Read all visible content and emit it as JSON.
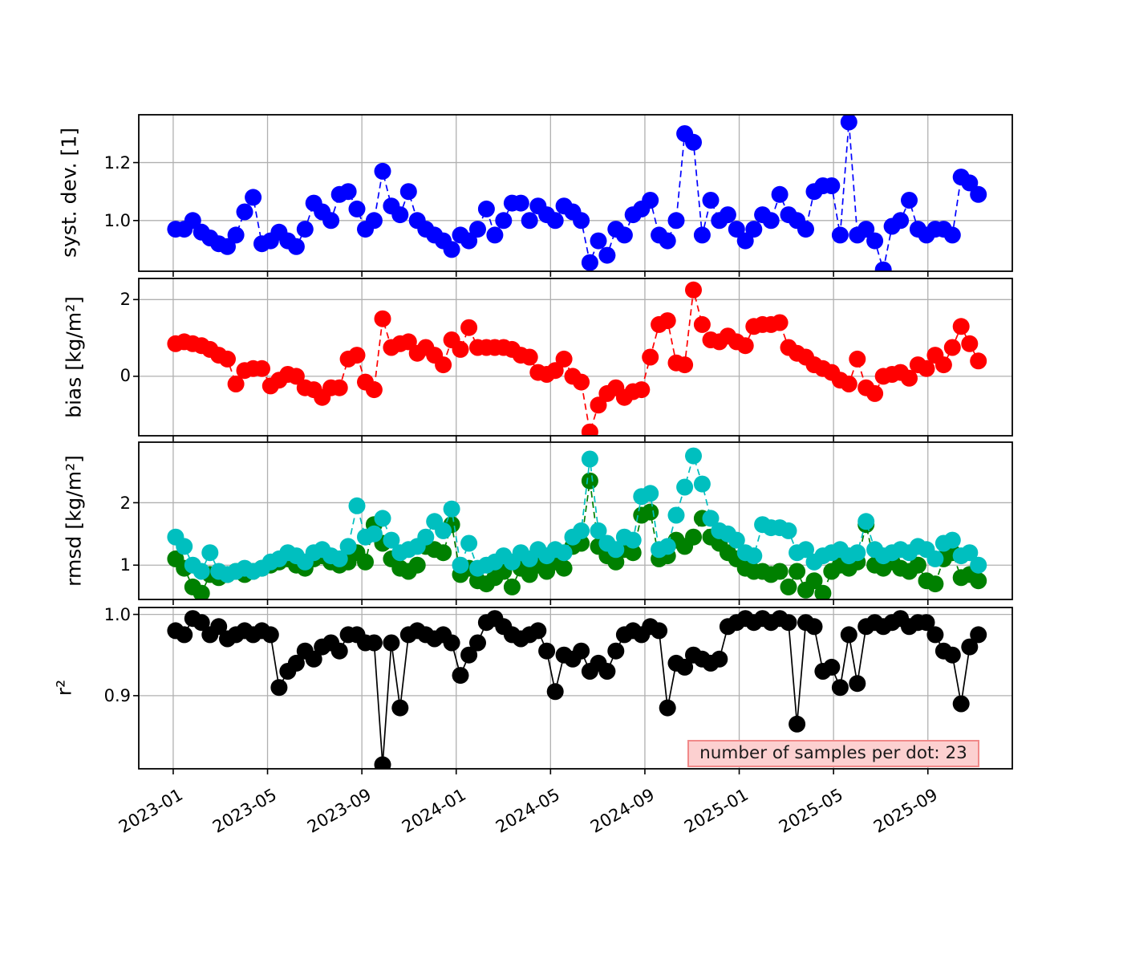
{
  "chart_data": {
    "type": "line",
    "title": "",
    "x_unit": "months since 2023-01-01",
    "x_tick_labels": [
      "2023-01",
      "2023-05",
      "2023-09",
      "2024-01",
      "2024-05",
      "2024-09",
      "2025-01",
      "2025-05",
      "2025-09"
    ],
    "x_tick_months": [
      0,
      4,
      8,
      12,
      16,
      20,
      24,
      28,
      32
    ],
    "xlim_months": [
      -1.46,
      35.58
    ],
    "grid": true,
    "legend": "none",
    "x": [
      0.1,
      0.47,
      0.83,
      1.2,
      1.56,
      1.93,
      2.3,
      2.66,
      3.03,
      3.39,
      3.76,
      4.13,
      4.49,
      4.86,
      5.22,
      5.59,
      5.96,
      6.32,
      6.69,
      7.05,
      7.42,
      7.79,
      8.15,
      8.52,
      8.88,
      9.25,
      9.62,
      9.98,
      10.35,
      10.71,
      11.08,
      11.45,
      11.81,
      12.18,
      12.54,
      12.91,
      13.28,
      13.64,
      14.01,
      14.37,
      14.74,
      15.11,
      15.47,
      15.84,
      16.2,
      16.57,
      16.94,
      17.3,
      17.67,
      18.03,
      18.4,
      18.77,
      19.13,
      19.5,
      19.86,
      20.23,
      20.6,
      20.96,
      21.33,
      21.69,
      22.06,
      22.43,
      22.79,
      23.16,
      23.52,
      23.89,
      24.26,
      24.62,
      24.99,
      25.35,
      25.72,
      26.09,
      26.45,
      26.82,
      27.18,
      27.55,
      27.92,
      28.28,
      28.65,
      29.01,
      29.38,
      29.75,
      30.11,
      30.48,
      30.84,
      31.21,
      31.58,
      31.94,
      32.31,
      32.67,
      33.04,
      33.41,
      33.77,
      34.14
    ],
    "panels": [
      {
        "ylabel": "syst. dev. [1]",
        "ylim": [
          0.825,
          1.365
        ],
        "yticks": [
          1.0,
          1.2
        ],
        "ytick_labels": [
          "1.0",
          "1.2"
        ],
        "series": [
          {
            "name": "syst-dev",
            "color": "#0000ff",
            "linestyle": "dashed",
            "values": [
              0.97,
              0.97,
              1.0,
              0.96,
              0.94,
              0.92,
              0.91,
              0.95,
              1.03,
              1.08,
              0.92,
              0.93,
              0.96,
              0.93,
              0.91,
              0.97,
              1.06,
              1.03,
              1.0,
              1.09,
              1.1,
              1.04,
              0.97,
              1.0,
              1.17,
              1.05,
              1.02,
              1.1,
              1.0,
              0.97,
              0.95,
              0.93,
              0.9,
              0.95,
              0.93,
              0.97,
              1.04,
              0.95,
              1.0,
              1.06,
              1.06,
              1.0,
              1.05,
              1.02,
              1.0,
              1.05,
              1.03,
              1.0,
              0.855,
              0.93,
              0.88,
              0.97,
              0.95,
              1.02,
              1.04,
              1.07,
              0.95,
              0.93,
              1.0,
              1.3,
              1.27,
              0.95,
              1.07,
              1.0,
              1.02,
              0.97,
              0.93,
              0.97,
              1.02,
              1.0,
              1.09,
              1.02,
              1.0,
              0.97,
              1.1,
              1.12,
              1.12,
              0.95,
              1.34,
              0.95,
              0.97,
              0.93,
              0.83,
              0.98,
              1.0,
              1.07,
              0.97,
              0.95,
              0.97,
              0.97,
              0.95,
              1.15,
              1.13,
              1.09
            ]
          }
        ]
      },
      {
        "ylabel": "bias [kg/m²]",
        "ylim": [
          -1.55,
          2.55
        ],
        "yticks": [
          0,
          2
        ],
        "ytick_labels": [
          "0",
          "2"
        ],
        "series": [
          {
            "name": "bias",
            "color": "#ff0000",
            "linestyle": "dashed",
            "values": [
              0.85,
              0.9,
              0.85,
              0.8,
              0.7,
              0.55,
              0.45,
              -0.2,
              0.15,
              0.2,
              0.2,
              -0.25,
              -0.1,
              0.05,
              0.0,
              -0.3,
              -0.35,
              -0.55,
              -0.3,
              -0.3,
              0.45,
              0.55,
              -0.15,
              -0.35,
              1.5,
              0.75,
              0.85,
              0.9,
              0.6,
              0.75,
              0.55,
              0.3,
              0.95,
              0.7,
              1.27,
              0.75,
              0.75,
              0.75,
              0.75,
              0.7,
              0.55,
              0.5,
              0.1,
              0.05,
              0.15,
              0.45,
              0.0,
              -0.15,
              -1.45,
              -0.75,
              -0.45,
              -0.3,
              -0.55,
              -0.4,
              -0.35,
              0.5,
              1.35,
              1.45,
              0.35,
              0.3,
              2.25,
              1.35,
              0.95,
              0.9,
              1.05,
              0.9,
              0.8,
              1.3,
              1.35,
              1.35,
              1.4,
              0.75,
              0.6,
              0.5,
              0.3,
              0.2,
              0.1,
              -0.1,
              -0.2,
              0.45,
              -0.3,
              -0.45,
              0.0,
              0.05,
              0.1,
              -0.05,
              0.3,
              0.2,
              0.55,
              0.3,
              0.75,
              1.3,
              0.85,
              0.4
            ]
          }
        ]
      },
      {
        "ylabel": "rmsd [kg/m²]",
        "ylim": [
          0.45,
          2.97
        ],
        "yticks": [
          1,
          2
        ],
        "ytick_labels": [
          "1",
          "2"
        ],
        "series": [
          {
            "name": "rmsd-green",
            "color": "#008000",
            "linestyle": "dashed",
            "values": [
              1.1,
              0.95,
              0.65,
              0.55,
              0.85,
              0.8,
              0.85,
              0.9,
              0.85,
              0.9,
              0.95,
              1.0,
              1.05,
              1.1,
              1.0,
              0.95,
              1.1,
              1.15,
              1.05,
              1.0,
              1.05,
              1.2,
              1.05,
              1.65,
              1.35,
              1.1,
              0.95,
              0.9,
              1.0,
              1.3,
              1.25,
              1.2,
              1.65,
              0.85,
              0.95,
              0.75,
              0.7,
              0.8,
              0.9,
              0.65,
              0.95,
              0.85,
              1.0,
              0.9,
              1.05,
              0.95,
              1.3,
              1.35,
              2.35,
              1.3,
              1.15,
              1.05,
              1.25,
              1.2,
              1.8,
              1.85,
              1.1,
              1.15,
              1.4,
              1.3,
              1.45,
              1.75,
              1.45,
              1.35,
              1.2,
              1.1,
              0.95,
              0.9,
              0.9,
              0.85,
              0.9,
              0.65,
              0.9,
              0.6,
              0.75,
              0.55,
              0.9,
              1.0,
              0.95,
              1.05,
              1.65,
              1.0,
              0.95,
              1.05,
              0.95,
              0.9,
              1.0,
              0.75,
              0.7,
              1.1,
              1.2,
              0.8,
              0.85,
              0.75
            ]
          },
          {
            "name": "rmsd-cyan",
            "color": "#00bfbf",
            "linestyle": "dashed",
            "values": [
              1.45,
              1.3,
              1.0,
              0.9,
              1.2,
              0.9,
              0.85,
              0.9,
              0.95,
              0.9,
              0.95,
              1.05,
              1.1,
              1.2,
              1.15,
              1.05,
              1.2,
              1.25,
              1.15,
              1.1,
              1.3,
              1.95,
              1.45,
              1.5,
              1.75,
              1.4,
              1.2,
              1.25,
              1.3,
              1.45,
              1.7,
              1.55,
              1.9,
              1.0,
              1.35,
              0.95,
              1.0,
              1.05,
              1.15,
              1.05,
              1.2,
              1.1,
              1.25,
              1.15,
              1.25,
              1.2,
              1.45,
              1.55,
              2.7,
              1.55,
              1.35,
              1.25,
              1.45,
              1.4,
              2.1,
              2.15,
              1.25,
              1.3,
              1.8,
              2.25,
              2.75,
              2.3,
              1.75,
              1.55,
              1.5,
              1.4,
              1.2,
              1.15,
              1.65,
              1.6,
              1.6,
              1.55,
              1.2,
              1.25,
              1.05,
              1.15,
              1.2,
              1.25,
              1.15,
              1.2,
              1.7,
              1.25,
              1.15,
              1.2,
              1.25,
              1.2,
              1.3,
              1.25,
              1.1,
              1.35,
              1.4,
              1.15,
              1.2,
              1.0
            ]
          }
        ]
      },
      {
        "ylabel": "r²",
        "ylim": [
          0.81,
          1.0085
        ],
        "yticks": [
          0.9,
          1.0
        ],
        "ytick_labels": [
          "0.9",
          "1.0"
        ],
        "series": [
          {
            "name": "r-squared",
            "color": "#000000",
            "linestyle": "solid",
            "values": [
              0.98,
              0.975,
              0.995,
              0.99,
              0.975,
              0.985,
              0.97,
              0.975,
              0.98,
              0.975,
              0.98,
              0.975,
              0.91,
              0.93,
              0.94,
              0.955,
              0.945,
              0.96,
              0.965,
              0.955,
              0.975,
              0.975,
              0.965,
              0.965,
              0.815,
              0.965,
              0.885,
              0.975,
              0.98,
              0.975,
              0.97,
              0.975,
              0.965,
              0.925,
              0.95,
              0.965,
              0.99,
              0.995,
              0.985,
              0.975,
              0.97,
              0.975,
              0.98,
              0.955,
              0.905,
              0.95,
              0.945,
              0.955,
              0.93,
              0.94,
              0.93,
              0.955,
              0.975,
              0.98,
              0.975,
              0.985,
              0.98,
              0.885,
              0.94,
              0.935,
              0.95,
              0.945,
              0.94,
              0.945,
              0.985,
              0.99,
              0.995,
              0.99,
              0.995,
              0.99,
              0.995,
              0.99,
              0.865,
              0.99,
              0.985,
              0.93,
              0.935,
              0.91,
              0.975,
              0.915,
              0.985,
              0.99,
              0.985,
              0.99,
              0.995,
              0.985,
              0.99,
              0.99,
              0.975,
              0.955,
              0.95,
              0.89,
              0.96,
              0.975
            ]
          }
        ]
      }
    ],
    "annotation": {
      "text": "number of samples per dot: 23",
      "background": "#fcd0d0",
      "border_color": "#f18989"
    },
    "style": {
      "grid_color": "#b0b0b0",
      "axis_color": "#000000",
      "background": "#ffffff"
    }
  }
}
